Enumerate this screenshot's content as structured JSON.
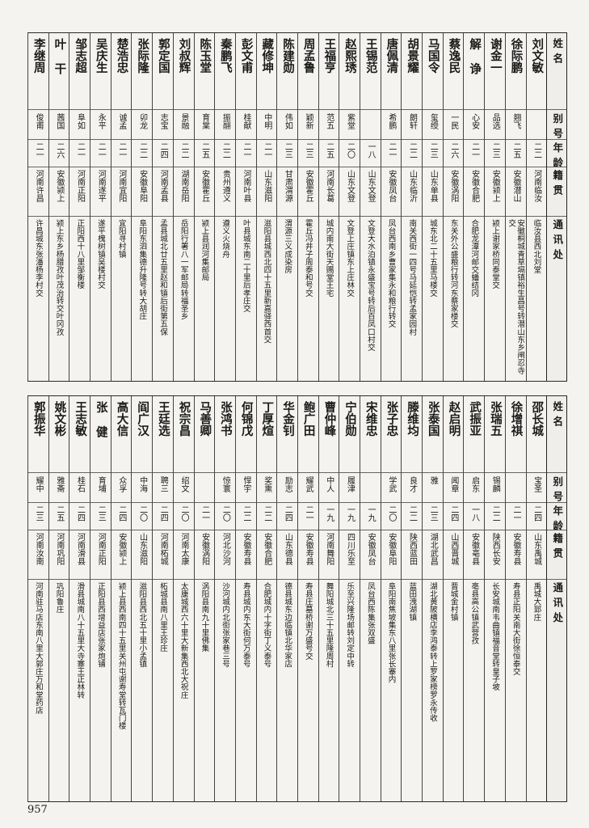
{
  "headers": {
    "name": "姓名",
    "alias": "别号",
    "age": "年龄",
    "origin": "籍贯",
    "address": "通讯处"
  },
  "table1": [
    {
      "name": "刘文敏",
      "alias": "",
      "age": "二二",
      "origin": "河南临汝",
      "address": "临汝县西北刘堂"
    },
    {
      "name": "徐际鹏",
      "alias": "翘飞",
      "age": "二五",
      "origin": "安徽潜山",
      "address": "安徽桐城青草塥镇裕生昌号转潜山东乡闸忍寺交"
    },
    {
      "name": "谢金一",
      "alias": "品选",
      "age": "二三",
      "origin": "安徽颍上",
      "address": "颍上谢家桥同泰堂交"
    },
    {
      "name": "解  诤",
      "alias": "心安",
      "age": "二一",
      "origin": "安徽合肥",
      "address": "合肥龙潭河邮交蟠结冈"
    },
    {
      "name": "蔡逸民",
      "alias": "一民",
      "age": "二六",
      "origin": "安徽涡阳",
      "address": "东关外公盛粮行转河东蔡家楼交"
    },
    {
      "name": "马国令",
      "alias": "玺绶",
      "age": "二三",
      "origin": "山东单县",
      "address": "城东北二十五里马楼交"
    },
    {
      "name": "胡景耀",
      "alias": "朗轩",
      "age": "二二",
      "origin": "山东临沂",
      "address": "南关西街一四号马延恺转孟家园村"
    },
    {
      "name": "唐佩清",
      "alias": "希鹏",
      "age": "二一",
      "origin": "安徽凤台",
      "address": "凤台西南乡曹家集永和粮行转交"
    },
    {
      "name": "王锡范",
      "alias": "",
      "age": "一八",
      "origin": "山东文登",
      "address": "文登大水泊镇永盛宝号转后百凤口村交"
    },
    {
      "name": "赵熙琇",
      "alias": "紫堂",
      "age": "二〇",
      "origin": "山东文登",
      "address": "文登上庄镇东上庄林交"
    },
    {
      "name": "王福亨",
      "alias": "范五",
      "age": "二五",
      "origin": "河南长葛",
      "address": "城内南大街天赐堂王宅"
    },
    {
      "name": "周孟鲁",
      "alias": "颖新",
      "age": "二三",
      "origin": "安徽霍丘",
      "address": "霍丘冯井子周泰和号交"
    },
    {
      "name": "陈建勋",
      "alias": "伟如",
      "age": "二三",
      "origin": "甘肃渭源",
      "address": "渭源三义成染房"
    },
    {
      "name": "藏修坤",
      "alias": "中明",
      "age": "二一",
      "origin": "山东滋阳",
      "address": "滋阳县城西北四十五里新嘉驿西首交"
    },
    {
      "name": "彭文甫",
      "alias": "桂献",
      "age": "二一",
      "origin": "河南叶县",
      "address": "叶县城东南二十里后孝庄交"
    },
    {
      "name": "秦鹏飞",
      "alias": "振翮",
      "age": "二二",
      "origin": "贵州遵义",
      "address": "遵义火烧舟"
    },
    {
      "name": "陈玉堂",
      "alias": "育棠",
      "age": "二五",
      "origin": "安徽霍丘",
      "address": "颍上县润河集邮局"
    },
    {
      "name": "刘叔辉",
      "alias": "景融",
      "age": "二二",
      "origin": "湖南岳阳",
      "address": "岳阳行署八一军邮局转福圣乡"
    },
    {
      "name": "郭定国",
      "alias": "志宝",
      "age": "二四",
      "origin": "河南孟县",
      "address": "孟县城北廿五里赵和镇后街第五保"
    },
    {
      "name": "张际隆",
      "alias": "卯龙",
      "age": "二二",
      "origin": "安徽阜阳",
      "address": "阜阳东泗集德升隆号转大胡庄"
    },
    {
      "name": "楚浩忠",
      "alias": "诚孟",
      "age": "二一",
      "origin": "河南宜阳",
      "address": "宜阳寻村镇"
    },
    {
      "name": "吴庆生",
      "alias": "永平",
      "age": "二一",
      "origin": "河南遂平",
      "address": "遂平槐树镇吴楼村交"
    },
    {
      "name": "邹志超",
      "alias": "阜如",
      "age": "二一",
      "origin": "河南正阳",
      "address": "正阳西十八里邹衡楼"
    },
    {
      "name": "叶  干",
      "alias": "茜国",
      "age": "二六",
      "origin": "安徽颍上",
      "address": "颍上东乡杨腊孜叶茂治转交叶冈孜"
    },
    {
      "name": "李继周",
      "alias": "俊甫",
      "age": "二一",
      "origin": "河南许昌",
      "address": "许昌城东张潘杨李村交"
    }
  ],
  "table2": [
    {
      "name": "邵长城",
      "alias": "宝圣",
      "age": "二四",
      "origin": "山东禹城",
      "address": "禹城大郅庄"
    },
    {
      "name": "徐增祺",
      "alias": "",
      "age": "二一",
      "origin": "安徽寿县",
      "address": "寿县正阳关南大街徐恒泰交"
    },
    {
      "name": "张瑞五",
      "alias": "锡麟",
      "age": "二二",
      "origin": "陕西长安",
      "address": "长安城南韦曲镇福音堂转皇子坡"
    },
    {
      "name": "武振亚",
      "alias": "启东",
      "age": "一八",
      "origin": "安徽亳县",
      "address": "亳县高公镇武营孜"
    },
    {
      "name": "赵启明",
      "alias": "闻章",
      "age": "二四",
      "origin": "山西晋城",
      "address": "晋城金村镇"
    },
    {
      "name": "张泰国",
      "alias": "雅",
      "age": "二三",
      "origin": "湖北武昌",
      "address": "湖北黄陂横店李鸿泰转上罗家榜罗永传收"
    },
    {
      "name": "滕维均",
      "alias": "良才",
      "age": "二二",
      "origin": "陕西蓝田",
      "address": "蓝田洩湖镇"
    },
    {
      "name": "张子忠",
      "alias": "学武",
      "age": "二〇",
      "origin": "安徽阜阳",
      "address": "阜阳南焦坡集东八里张长寨内"
    },
    {
      "name": "宋维忠",
      "alias": "",
      "age": "一九",
      "origin": "安徽凤台",
      "address": "凤台西陈集张双盛"
    },
    {
      "name": "宁伯勋",
      "alias": "履津",
      "age": "一九",
      "origin": "四川乐至",
      "address": "乐至兴隆场邮转刘定中转"
    },
    {
      "name": "曹仲峰",
      "alias": "中人",
      "age": "一九",
      "origin": "河南舞阳",
      "address": "舞阳城北三十五里隆周村"
    },
    {
      "name": "鲍广田",
      "alias": "耀武",
      "age": "二一",
      "origin": "安徽寿县",
      "address": "寿县庄墓桥谢万盛号交"
    },
    {
      "name": "华金钊",
      "alias": "励志",
      "age": "二四",
      "origin": "山东德县",
      "address": "德县城东边临镇北华家店"
    },
    {
      "name": "丁厚煊",
      "alias": "奖熏",
      "age": "二二",
      "origin": "安徽合肥",
      "address": "合肥城内十字街丁义泰号"
    },
    {
      "name": "何锦戊",
      "alias": "悍宇",
      "age": "二二",
      "origin": "安徽寿县",
      "address": "寿县城内东大街何万泰号"
    },
    {
      "name": "张鸿书",
      "alias": "惊寰",
      "age": "二〇",
      "origin": "河北沙河",
      "address": "沙河城内北街张家巷三号"
    },
    {
      "name": "马善卿",
      "alias": "",
      "age": "二一",
      "origin": "安徽涡阳",
      "address": "涡阳县南九十里佛集"
    },
    {
      "name": "祝宗昌",
      "alias": "绍文",
      "age": "二〇",
      "origin": "河南太康",
      "address": "太康城西六十里大新集西北大祝庄"
    },
    {
      "name": "王廷选",
      "alias": "聘三",
      "age": "二四",
      "origin": "河南柘城",
      "address": "柘城县南八里王珍庄"
    },
    {
      "name": "阎广汉",
      "alias": "中海",
      "age": "二〇",
      "origin": "山东滋阳",
      "address": "滋阳县西北五十里小孟镇"
    },
    {
      "name": "高大信",
      "alias": "众孚",
      "age": "二四",
      "origin": "安徽颍上",
      "address": "颍上县西南四十五里关州屯谢寿堂转瓦门楼"
    },
    {
      "name": "张  健",
      "alias": "育埔",
      "age": "二三",
      "origin": "河南正阳",
      "address": "正阳县西增益店张家炮铺"
    },
    {
      "name": "王志敏",
      "alias": "桂石",
      "age": "二四",
      "origin": "河南滑县",
      "address": "滑县城南八十五里大寺寨王正林转"
    },
    {
      "name": "姚文彬",
      "alias": "雅斋",
      "age": "二五",
      "origin": "河南巩阳",
      "address": "巩阳鲁庄"
    },
    {
      "name": "郭振华",
      "alias": "耀中",
      "age": "二三",
      "origin": "河南汝南",
      "address": "河南驻马店东南八里大郭庄万和堂药店"
    }
  ],
  "page_number": "957"
}
